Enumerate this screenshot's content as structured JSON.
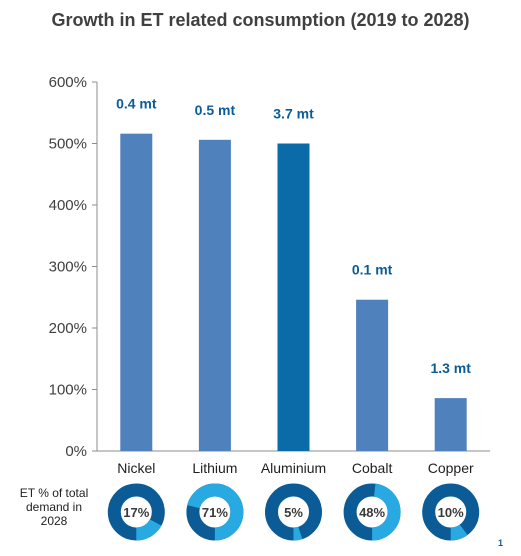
{
  "chart_data": {
    "type": "bar",
    "title": "Growth in ET related consumption (2019 to 2028)",
    "categories": [
      "Nickel",
      "Lithium",
      "Aluminium",
      "Cobalt",
      "Copper"
    ],
    "values": [
      516,
      506,
      500,
      246,
      86
    ],
    "data_labels": [
      "0.4 mt",
      "0.5 mt",
      "3.7 mt",
      "0.1 mt",
      "1.3 mt"
    ],
    "ylim": [
      0,
      600
    ],
    "yticks": [
      "0%",
      "100%",
      "200%",
      "300%",
      "400%",
      "500%",
      "600%"
    ],
    "ytick_values": [
      0,
      100,
      200,
      300,
      400,
      500,
      600
    ],
    "grid": false,
    "highlight_index": 2,
    "colors": {
      "bar": "#4f81bd",
      "highlight": "#0b6aa8",
      "label": "#0b5c96"
    }
  },
  "et_share": {
    "label": "ET % of total demand in 2028",
    "values": [
      17,
      71,
      5,
      48,
      10
    ],
    "labels": [
      "17%",
      "71%",
      "5%",
      "48%",
      "10%"
    ],
    "colors": {
      "dark": "#0b5c96",
      "light": "#29a9e1"
    }
  },
  "footnote": "1"
}
